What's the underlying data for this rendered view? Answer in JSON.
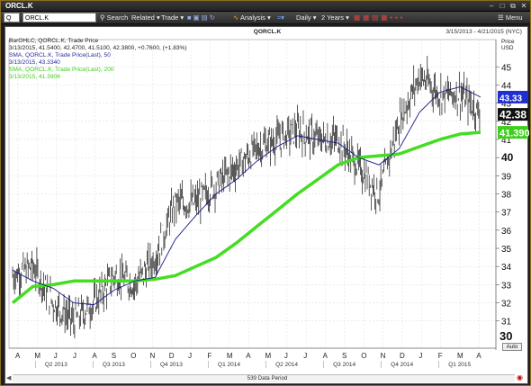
{
  "window": {
    "title": "ORCL.K"
  },
  "toolbar": {
    "q_value": "Q",
    "symbol_value": "ORCL.K",
    "search": "Search",
    "related": "Related",
    "trade": "Trade",
    "analysis": "Analysis",
    "daily": "Daily",
    "range": "2 Years",
    "menu": "Menu"
  },
  "chart": {
    "title": "QORCL.K",
    "date_range": "3/15/2013 - 4/21/2015 (NYC)",
    "price_label": "Price",
    "price_unit": "USD",
    "auto": "Auto",
    "period": "539 Data Period",
    "legend": {
      "bar_header": "BarOHLC, QORCL.K, Trade Price",
      "bar_values": "3/13/2015, 41.5400, 42.4700, 41.5100, 42.3800, +0.7600, (+1.83%)",
      "sma50_header": "SMA, QORCL.K, Trade Price(Last), 50",
      "sma50_value": "3/13/2015, 43.3340",
      "sma200_header": "SMA, QORCL.K, Trade Price(Last), 200",
      "sma200_value": "3/13/2015, 41.3908"
    },
    "price_ticks": [
      "31",
      "32",
      "33",
      "34",
      "35",
      "36",
      "37",
      "38",
      "39",
      "40",
      "41",
      "42",
      "43",
      "44",
      "45"
    ],
    "bottom_tick": "30",
    "last_price_badge": "42.38",
    "sma200_badge": "41.390",
    "sma50_badge": "43.33",
    "month_ticks": [
      "A",
      "M",
      "J",
      "J",
      "A",
      "S",
      "O",
      "N",
      "D",
      "J",
      "F",
      "M",
      "A",
      "M",
      "J",
      "J",
      "A",
      "S",
      "O",
      "N",
      "D",
      "J",
      "F",
      "M",
      "A"
    ],
    "quarter_labels": [
      "Q2 2013",
      "Q3 2013",
      "Q4 2013",
      "Q1 2014",
      "Q2 2014",
      "Q3 2014",
      "Q4 2014",
      "Q1 2015"
    ],
    "colors": {
      "bars": "#111111",
      "sma50": "#1a1a8c",
      "sma200": "#44dd22",
      "last_badge": "#111111",
      "sma50_badge": "#1f2fd0",
      "sma200_badge": "#3ecf1a"
    }
  },
  "chart_data": {
    "type": "line",
    "title": "QORCL.K",
    "ylabel": "Price USD",
    "ylim": [
      29.5,
      46.5
    ],
    "x": [
      "2013-04",
      "2013-05",
      "2013-06",
      "2013-07",
      "2013-08",
      "2013-09",
      "2013-10",
      "2013-11",
      "2013-12",
      "2014-01",
      "2014-02",
      "2014-03",
      "2014-04",
      "2014-05",
      "2014-06",
      "2014-07",
      "2014-08",
      "2014-09",
      "2014-10",
      "2014-11",
      "2014-12",
      "2015-01",
      "2015-02",
      "2015-03"
    ],
    "series": [
      {
        "name": "BarOHLC",
        "values": [
          33.5,
          34.0,
          32.0,
          31.0,
          32.0,
          33.5,
          33.0,
          34.5,
          37.5,
          37.5,
          38.5,
          39.5,
          40.5,
          41.0,
          41.5,
          41.0,
          41.0,
          39.5,
          38.0,
          42.0,
          44.5,
          43.5,
          43.5,
          42.4
        ]
      },
      {
        "name": "SMA 50",
        "values": [
          33.8,
          33.2,
          32.8,
          32.0,
          31.9,
          32.7,
          33.2,
          33.4,
          35.5,
          36.8,
          38.0,
          38.8,
          39.8,
          40.6,
          41.2,
          41.0,
          40.8,
          40.0,
          39.6,
          40.5,
          42.5,
          43.6,
          43.9,
          43.33
        ]
      },
      {
        "name": "SMA 200",
        "values": [
          32.0,
          32.9,
          33.0,
          33.2,
          33.2,
          33.2,
          33.2,
          33.3,
          33.5,
          34.0,
          34.5,
          35.3,
          36.2,
          37.1,
          38.0,
          38.8,
          39.6,
          40.0,
          40.1,
          40.2,
          40.6,
          41.0,
          41.3,
          41.39
        ]
      }
    ]
  }
}
